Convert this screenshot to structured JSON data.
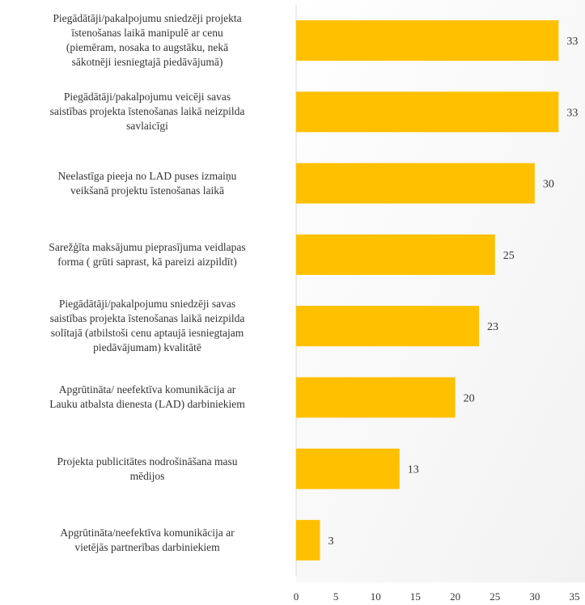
{
  "chart_data": {
    "type": "bar",
    "orientation": "horizontal",
    "categories": [
      "Piegādātāji/pakalpojumu sniedzēji projekta\nīstenošanas laikā manipulē ar cenu\n(piemēram, nosaka to augstāku, nekā\nsākotnēji iesniegtajā piedāvājumā)",
      "Piegādātāji/pakalpojumu veicēji savas\nsaistības projekta īstenošanas laikā neizpilda\nsavlaicīgi",
      "Neelastīga pieeja no LAD puses izmaiņu\nveikšanā projektu īstenošanas laikā",
      "Sarežģīta maksājumu pieprasījuma veidlapas\nforma ( grūti saprast, kā pareizi aizpildīt)",
      "Piegādātāji/pakalpojumu sniedzēji savas\nsaistības projekta īstenošanas laikā neizpilda\nsolītajā (atbilstoši cenu aptaujā iesniegtajam\npiedāvājumam) kvalitātē",
      "Apgrūtināta/ neefektīva komunikācija ar\nLauku atbalsta dienesta (LAD) darbiniekiem",
      "Projekta publicitātes nodrošināšana masu\nmēdijos",
      "Apgrūtināta/neefektīva komunikācija ar\nvietējās partnerības darbiniekiem"
    ],
    "values": [
      33,
      33,
      30,
      25,
      23,
      20,
      13,
      3
    ],
    "data_labels": [
      "33",
      "33",
      "30",
      "25",
      "23",
      "20",
      "13",
      "3"
    ],
    "xlim": [
      0,
      35
    ],
    "xticks": [
      "0",
      "5",
      "10",
      "15",
      "20",
      "25",
      "30",
      "35"
    ],
    "title": "",
    "xlabel": "",
    "ylabel": "",
    "grid": false,
    "legend": "none",
    "bar_color": "#FFC000",
    "axis_color": "#D9D9D9",
    "background_gradient": [
      "#FFFFFF",
      "#F2F2F2"
    ]
  }
}
